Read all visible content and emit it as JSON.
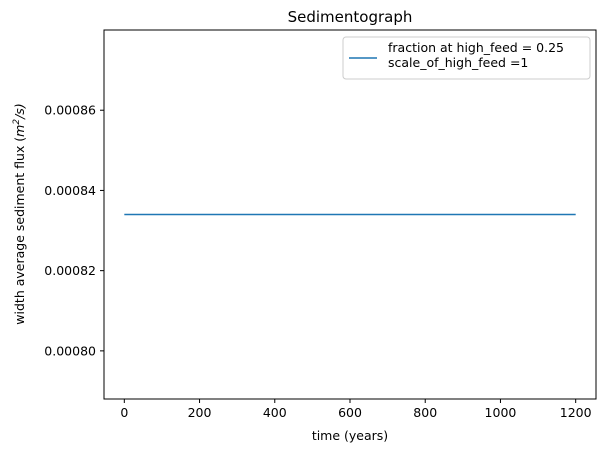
{
  "chart_data": {
    "type": "line",
    "title": "Sedimentograph",
    "xlabel": "time (years)",
    "ylabel_prefix": "width average sediment flux (",
    "ylabel_unit_base": "m",
    "ylabel_unit_exp": "2",
    "ylabel_suffix": "/s)",
    "xlim": [
      -54,
      1254
    ],
    "ylim": [
      0.000788,
      0.00088
    ],
    "xticks": [
      0,
      200,
      400,
      600,
      800,
      1000,
      1200
    ],
    "xtick_labels": [
      "0",
      "200",
      "400",
      "600",
      "800",
      "1000",
      "1200"
    ],
    "yticks": [
      0.0008,
      0.00082,
      0.00084,
      0.00086
    ],
    "ytick_labels": [
      "0.00080",
      "0.00082",
      "0.00084",
      "0.00086"
    ],
    "grid": false,
    "legend_position": "top-right",
    "series": [
      {
        "legend_lines": [
          "fraction at high_feed = 0.25",
          "scale_of_high_feed =1"
        ],
        "color": "#1f77b4",
        "x": [
          0,
          1200
        ],
        "y": [
          0.000834,
          0.000834
        ]
      }
    ]
  }
}
